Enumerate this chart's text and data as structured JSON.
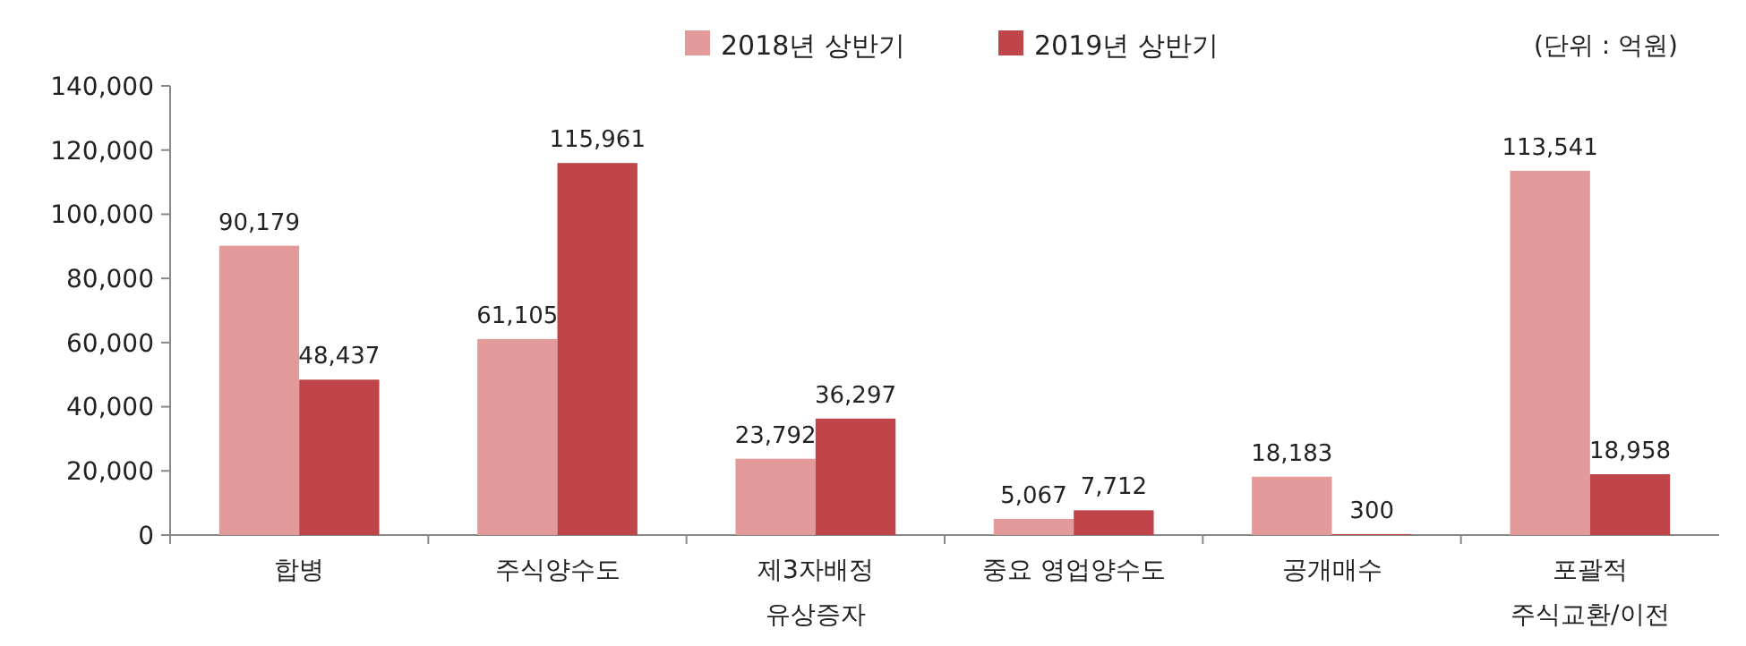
{
  "chart_data": {
    "type": "bar",
    "categories": [
      "합병",
      "주식양수도",
      "제3자배정\n유상증자",
      "중요 영업양수도",
      "공개매수",
      "포괄적\n주식교환/이전"
    ],
    "series": [
      {
        "name": "2018년 상반기",
        "color": "#e39a9b",
        "values": [
          90179,
          61105,
          23792,
          5067,
          18183,
          113541
        ],
        "value_labels": [
          "90,179",
          "61,105",
          "23,792",
          "5,067",
          "18,183",
          "113,541"
        ]
      },
      {
        "name": "2019년 상반기",
        "color": "#c0454a",
        "values": [
          48437,
          115961,
          36297,
          7712,
          300,
          18958
        ],
        "value_labels": [
          "48,437",
          "115,961",
          "36,297",
          "7,712",
          "300",
          "18,958"
        ]
      }
    ],
    "ylim": [
      0,
      140000
    ],
    "yticks": [
      {
        "value": 0,
        "label": "0"
      },
      {
        "value": 20000,
        "label": "20,000"
      },
      {
        "value": 40000,
        "label": "40,000"
      },
      {
        "value": 60000,
        "label": "60,000"
      },
      {
        "value": 80000,
        "label": "80,000"
      },
      {
        "value": 100000,
        "label": "100,000"
      },
      {
        "value": 120000,
        "label": "120,000"
      },
      {
        "value": 140000,
        "label": "140,000"
      }
    ],
    "legend": "top",
    "grid": false,
    "annotations": [
      "(단위 : 억원)"
    ]
  }
}
